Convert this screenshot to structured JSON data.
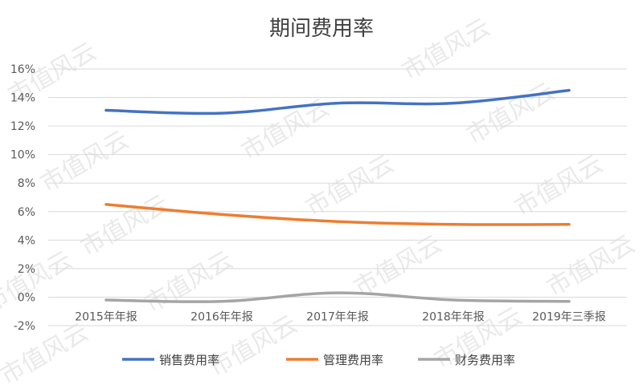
{
  "chart_data": {
    "type": "line",
    "title": "期间费用率",
    "categories": [
      "2015年年报",
      "2016年年报",
      "2017年年报",
      "2018年年报",
      "2019年三季报"
    ],
    "ylim": [
      -0.02,
      0.16
    ],
    "yticks": [
      "-2%",
      "0%",
      "2%",
      "4%",
      "6%",
      "8%",
      "10%",
      "12%",
      "14%",
      "16%"
    ],
    "grid": true,
    "legend_position": "bottom",
    "series": [
      {
        "name": "销售费用率",
        "color": "#4472C4",
        "values": [
          0.131,
          0.129,
          0.136,
          0.136,
          0.145
        ]
      },
      {
        "name": "管理费用率",
        "color": "#ED7D31",
        "values": [
          0.065,
          0.058,
          0.053,
          0.051,
          0.051
        ]
      },
      {
        "name": "财务费用率",
        "color": "#A5A5A5",
        "values": [
          -0.002,
          -0.003,
          0.003,
          -0.002,
          -0.003
        ]
      }
    ]
  },
  "watermark": "市值风云"
}
